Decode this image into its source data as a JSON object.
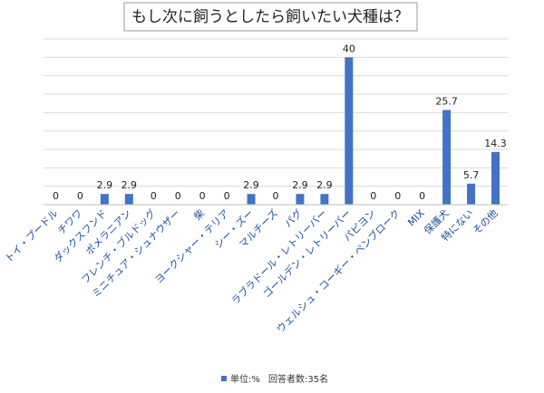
{
  "chart_data": {
    "type": "bar",
    "title": "もし次に飼うとしたら飼いたい犬種は？",
    "categories": [
      "トイ・プードル",
      "チワワ",
      "ダックスフンド",
      "ポメラニアン",
      "フレンチ・ブルドッグ",
      "ミニチュア・シュナウザー",
      "柴",
      "ヨークシャー・テリア",
      "シー・ズー",
      "マルチーズ",
      "パグ",
      "ラブラドール・レトリーバー",
      "ゴールデン・レトリーバー",
      "パピヨン",
      "ウェルシュ・コーギー・ペンブローク",
      "MIX",
      "保護犬",
      "特にない",
      "その他"
    ],
    "values": [
      0,
      0,
      2.9,
      2.9,
      0,
      0,
      0,
      0,
      2.9,
      0,
      2.9,
      2.9,
      40,
      0,
      0,
      0,
      25.7,
      5.7,
      14.3
    ],
    "value_labels": [
      "0",
      "0",
      "2.9",
      "2.9",
      "0",
      "0",
      "0",
      "0",
      "2.9",
      "0",
      "2.9",
      "2.9",
      "40",
      "0",
      "0",
      "0",
      "25.7",
      "5.7",
      "14.3"
    ],
    "ylim": [
      0,
      45
    ],
    "grid": true,
    "legend": {
      "position": "bottom",
      "series_label": "単位:%",
      "note": "回答者数:35名"
    },
    "colors": {
      "bar": "#4472c4"
    }
  }
}
